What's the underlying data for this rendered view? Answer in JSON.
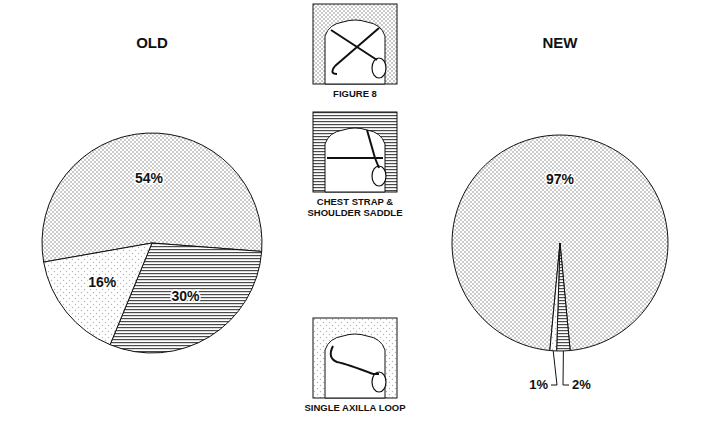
{
  "chart_data": {
    "type": "pie",
    "categories": [
      "FIGURE 8",
      "CHEST STRAP & SHOULDER SADDLE",
      "SINGLE AXILLA LOOP"
    ],
    "colors": [
      "#8a8a8a",
      "#4a4a4a",
      "#b5b5b5"
    ],
    "data_labels": true,
    "series": [
      {
        "name": "OLD",
        "values": [
          54,
          30,
          16
        ],
        "value_labels": [
          "54%",
          "30%",
          "16%"
        ]
      },
      {
        "name": "NEW",
        "values": [
          97,
          2,
          1
        ],
        "value_labels": [
          "97%",
          "2%",
          "1%"
        ]
      }
    ]
  }
}
